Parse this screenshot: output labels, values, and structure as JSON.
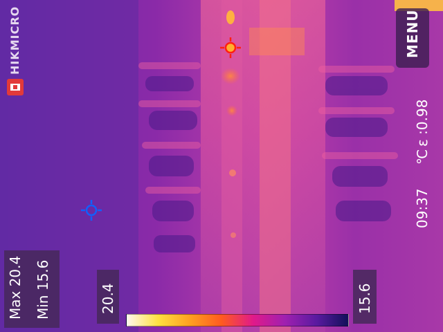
{
  "brand": {
    "name": "HIKMICRO"
  },
  "menu": {
    "label": "MENU"
  },
  "status": {
    "time": "09:37",
    "unit": "℃",
    "emissivity": "ε :0.98"
  },
  "measure": {
    "max_label": "Max 20.4",
    "min_label": "Min 15.6"
  },
  "scale": {
    "high": "20.4",
    "low": "15.6",
    "palette_colors": [
      "#fff8f0",
      "#ffe040",
      "#ffa020",
      "#ff5a20",
      "#e01a8a",
      "#a020b0",
      "#5a1aa0",
      "#12105a"
    ]
  },
  "markers": {
    "hot_spot_icon": "crosshair-hot-icon",
    "cold_spot_icon": "crosshair-cold-icon",
    "hot_color": "#ff2010",
    "cold_color": "#1060ff"
  },
  "colors": {
    "panel_bg": "#46285a",
    "text": "#ffffff"
  }
}
